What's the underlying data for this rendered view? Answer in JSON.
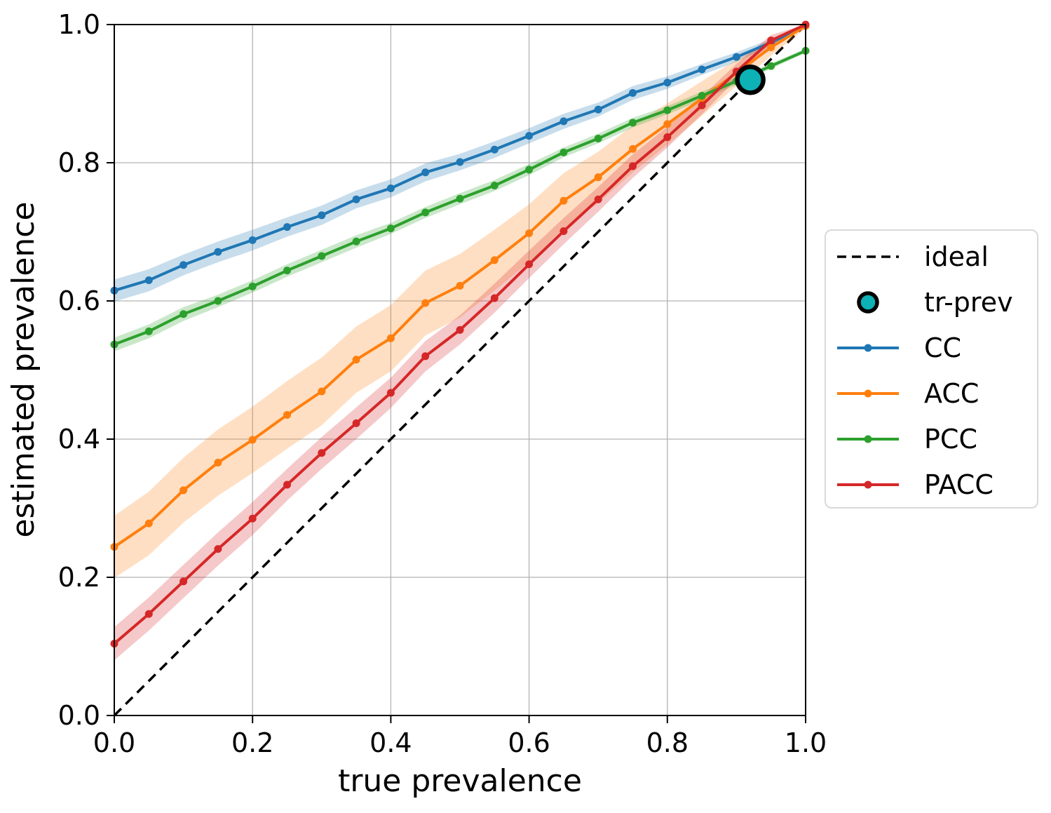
{
  "figure": {
    "background": "#ffffff"
  },
  "axes": {
    "xlabel": "true prevalence",
    "ylabel": "estimated prevalence",
    "grid_color": "#b3b3b3",
    "xticks": {
      "values": [
        0.0,
        0.2,
        0.4,
        0.6,
        0.8,
        1.0
      ],
      "labels": [
        "0.0",
        "0.2",
        "0.4",
        "0.6",
        "0.8",
        "1.0"
      ]
    },
    "yticks": {
      "values": [
        0.0,
        0.2,
        0.4,
        0.6,
        0.8,
        1.0
      ],
      "labels": [
        "0.0",
        "0.2",
        "0.4",
        "0.6",
        "0.8",
        "1.0"
      ]
    }
  },
  "legend": {
    "items": [
      {
        "label": "ideal",
        "type": "dashed-line",
        "color": "#000000"
      },
      {
        "label": "tr-prev",
        "type": "circle",
        "color": "#0cb2b6",
        "edge": "#000000"
      },
      {
        "label": "CC",
        "type": "line-marker",
        "color": "#1f77b4"
      },
      {
        "label": "ACC",
        "type": "line-marker",
        "color": "#ff7f0e"
      },
      {
        "label": "PCC",
        "type": "line-marker",
        "color": "#2ca02c"
      },
      {
        "label": "PACC",
        "type": "line-marker",
        "color": "#d62728"
      }
    ]
  },
  "chart_data": {
    "type": "line",
    "title": "",
    "xlabel": "true prevalence",
    "ylabel": "estimated prevalence",
    "xlim": [
      0,
      1
    ],
    "ylim": [
      0,
      1
    ],
    "grid": true,
    "legend_position": "right-outside",
    "x": [
      0.0,
      0.05,
      0.1,
      0.15,
      0.2,
      0.25,
      0.3,
      0.35,
      0.4,
      0.45,
      0.5,
      0.55,
      0.6,
      0.65,
      0.7,
      0.75,
      0.8,
      0.85,
      0.9,
      0.95,
      1.0
    ],
    "series": [
      {
        "name": "CC",
        "color": "#1f77b4",
        "values": [
          0.615,
          0.63,
          0.652,
          0.671,
          0.688,
          0.707,
          0.724,
          0.747,
          0.763,
          0.786,
          0.801,
          0.819,
          0.839,
          0.86,
          0.877,
          0.901,
          0.916,
          0.935,
          0.953,
          0.974,
          0.998
        ],
        "band_halfwidth": [
          0.016,
          0.016,
          0.015,
          0.015,
          0.015,
          0.014,
          0.014,
          0.013,
          0.013,
          0.013,
          0.012,
          0.012,
          0.011,
          0.011,
          0.01,
          0.01,
          0.009,
          0.008,
          0.007,
          0.005,
          0.003
        ]
      },
      {
        "name": "ACC",
        "color": "#ff7f0e",
        "values": [
          0.244,
          0.278,
          0.326,
          0.366,
          0.399,
          0.435,
          0.469,
          0.515,
          0.546,
          0.597,
          0.622,
          0.659,
          0.698,
          0.745,
          0.779,
          0.82,
          0.856,
          0.893,
          0.93,
          0.967,
          0.998
        ],
        "band_halfwidth": [
          0.045,
          0.046,
          0.047,
          0.048,
          0.048,
          0.049,
          0.049,
          0.048,
          0.048,
          0.047,
          0.046,
          0.044,
          0.042,
          0.04,
          0.037,
          0.034,
          0.03,
          0.025,
          0.019,
          0.012,
          0.004
        ]
      },
      {
        "name": "PCC",
        "color": "#2ca02c",
        "values": [
          0.537,
          0.556,
          0.581,
          0.6,
          0.621,
          0.644,
          0.665,
          0.686,
          0.705,
          0.728,
          0.748,
          0.767,
          0.79,
          0.815,
          0.835,
          0.858,
          0.876,
          0.897,
          0.918,
          0.94,
          0.962
        ],
        "band_halfwidth": [
          0.01,
          0.01,
          0.01,
          0.009,
          0.009,
          0.009,
          0.009,
          0.009,
          0.008,
          0.008,
          0.008,
          0.008,
          0.008,
          0.007,
          0.007,
          0.007,
          0.006,
          0.006,
          0.005,
          0.004,
          0.003
        ]
      },
      {
        "name": "PACC",
        "color": "#d62728",
        "values": [
          0.104,
          0.147,
          0.194,
          0.241,
          0.285,
          0.334,
          0.38,
          0.423,
          0.467,
          0.52,
          0.558,
          0.604,
          0.653,
          0.701,
          0.747,
          0.795,
          0.837,
          0.883,
          0.932,
          0.977,
          1.0
        ],
        "band_halfwidth": [
          0.024,
          0.024,
          0.024,
          0.024,
          0.024,
          0.023,
          0.023,
          0.023,
          0.022,
          0.022,
          0.021,
          0.021,
          0.02,
          0.019,
          0.018,
          0.017,
          0.015,
          0.013,
          0.011,
          0.008,
          0.004
        ]
      }
    ],
    "reference_line": {
      "name": "ideal",
      "style": "dashed",
      "color": "#000000",
      "from": [
        0,
        0
      ],
      "to": [
        1,
        1
      ]
    },
    "point": {
      "name": "tr-prev",
      "x": 0.92,
      "y": 0.92,
      "color": "#0cb2b6",
      "edge_color": "#000000"
    }
  }
}
